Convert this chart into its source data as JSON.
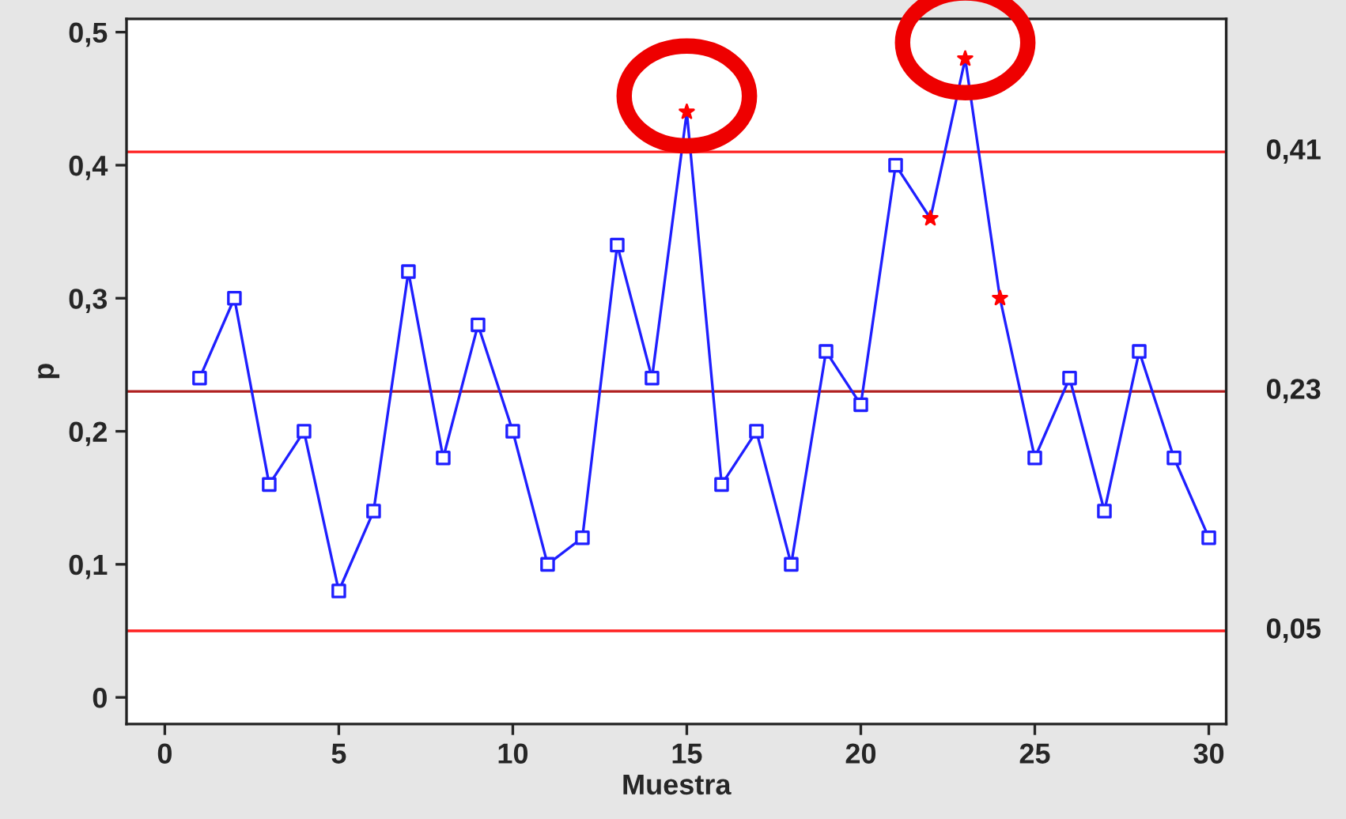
{
  "chart_data": {
    "type": "line",
    "xlabel": "Muestra",
    "ylabel": "p",
    "xlim": [
      -1.1,
      30.5
    ],
    "ylim": [
      -0.02,
      0.51
    ],
    "xticks": [
      0,
      5,
      10,
      15,
      20,
      25,
      30
    ],
    "yticks": [
      {
        "value": 0,
        "label": "0"
      },
      {
        "value": 0.1,
        "label": "0,1"
      },
      {
        "value": 0.2,
        "label": "0,2"
      },
      {
        "value": 0.3,
        "label": "0,3"
      },
      {
        "value": 0.4,
        "label": "0,4"
      },
      {
        "value": 0.5,
        "label": "0,5"
      }
    ],
    "grid": false,
    "legend": false,
    "series": [
      {
        "color": "#1f1fff",
        "marker": "none",
        "x": [
          1,
          2,
          3,
          4,
          5,
          6,
          7,
          8,
          9,
          10,
          11,
          12,
          13,
          14,
          15,
          16,
          17,
          18,
          19,
          20,
          21,
          22,
          23,
          24,
          25,
          26,
          27,
          28,
          29,
          30
        ],
        "values": [
          0.24,
          0.3,
          0.16,
          0.2,
          0.08,
          0.14,
          0.32,
          0.18,
          0.28,
          0.2,
          0.1,
          0.12,
          0.34,
          0.24,
          0.44,
          0.16,
          0.2,
          0.1,
          0.26,
          0.22,
          0.4,
          0.36,
          0.48,
          0.3,
          0.18,
          0.24,
          0.14,
          0.26,
          0.18,
          0.12
        ]
      },
      {
        "type": "scatter",
        "color": "#1f1fff",
        "marker": "square",
        "x": [
          1,
          2,
          3,
          4,
          5,
          6,
          7,
          8,
          9,
          10,
          11,
          12,
          13,
          14,
          16,
          17,
          18,
          19,
          20,
          21,
          25,
          26,
          27,
          28,
          29,
          30
        ],
        "values": [
          0.24,
          0.3,
          0.16,
          0.2,
          0.08,
          0.14,
          0.32,
          0.18,
          0.28,
          0.2,
          0.1,
          0.12,
          0.34,
          0.24,
          0.16,
          0.2,
          0.1,
          0.26,
          0.22,
          0.4,
          0.18,
          0.24,
          0.14,
          0.26,
          0.18,
          0.12
        ]
      },
      {
        "type": "scatter",
        "color": "#ff0000",
        "marker": "star",
        "x": [
          15,
          22,
          23,
          24
        ],
        "values": [
          0.44,
          0.36,
          0.48,
          0.3
        ]
      }
    ],
    "ref_lines": [
      {
        "axis": "y",
        "value": 0.41,
        "label": "0,41",
        "color": "#ff2020"
      },
      {
        "axis": "y",
        "value": 0.23,
        "label": "0,23",
        "color": "#b02020"
      },
      {
        "axis": "y",
        "value": 0.05,
        "label": "0,05",
        "color": "#ff2020"
      }
    ]
  }
}
